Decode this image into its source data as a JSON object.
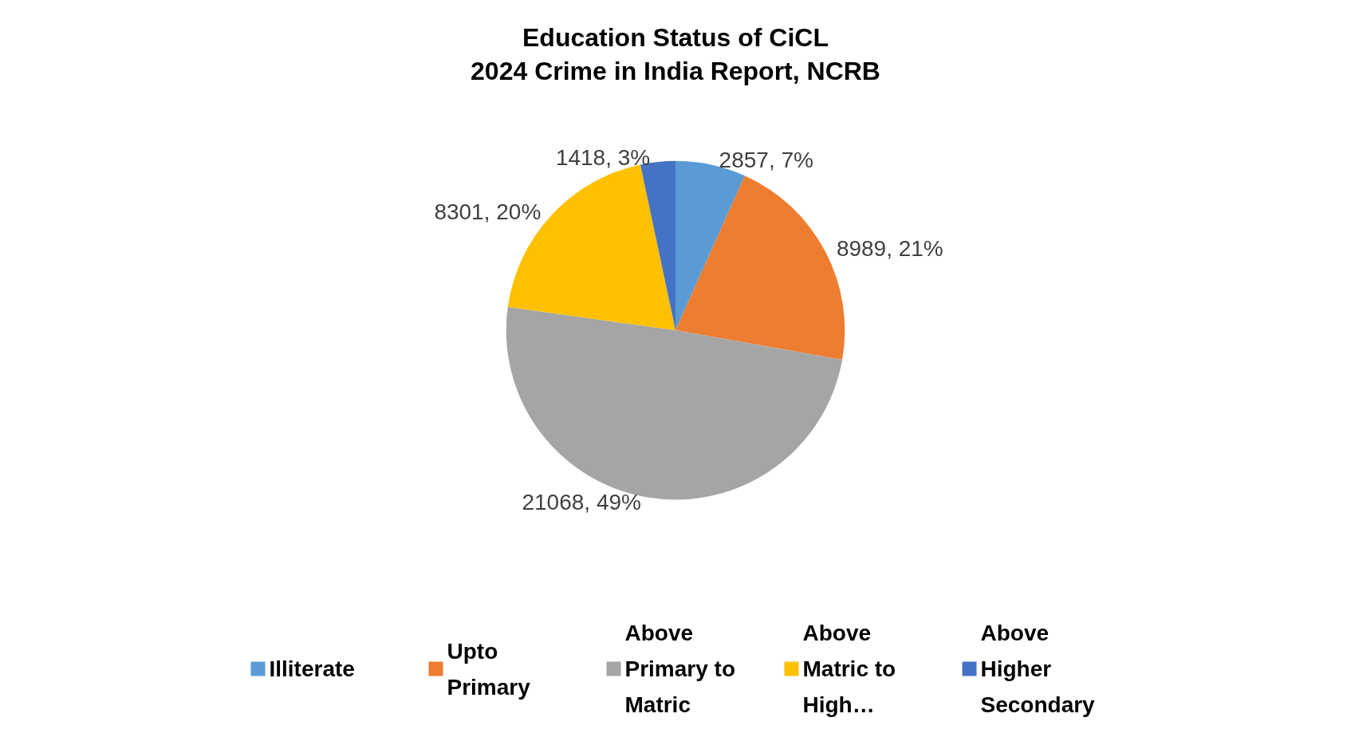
{
  "chart_data": {
    "type": "pie",
    "title": "Education Status of CiCL",
    "subtitle": "2024 Crime in India Report, NCRB",
    "categories": [
      "Illiterate",
      "Upto Primary",
      "Above Primary to Matric",
      "Above Matric to High…",
      "Above Higher Secondary"
    ],
    "values": [
      2857,
      8989,
      21068,
      8301,
      1418
    ],
    "colors": [
      "#5b9bd5",
      "#ed7d31",
      "#a5a5a5",
      "#ffc000",
      "#4472c4"
    ],
    "value_labels": [
      "2857, 7%",
      "8989, 21%",
      "21068, 49%",
      "8301, 20%",
      "1418, 3%"
    ],
    "legend": "bottom"
  }
}
